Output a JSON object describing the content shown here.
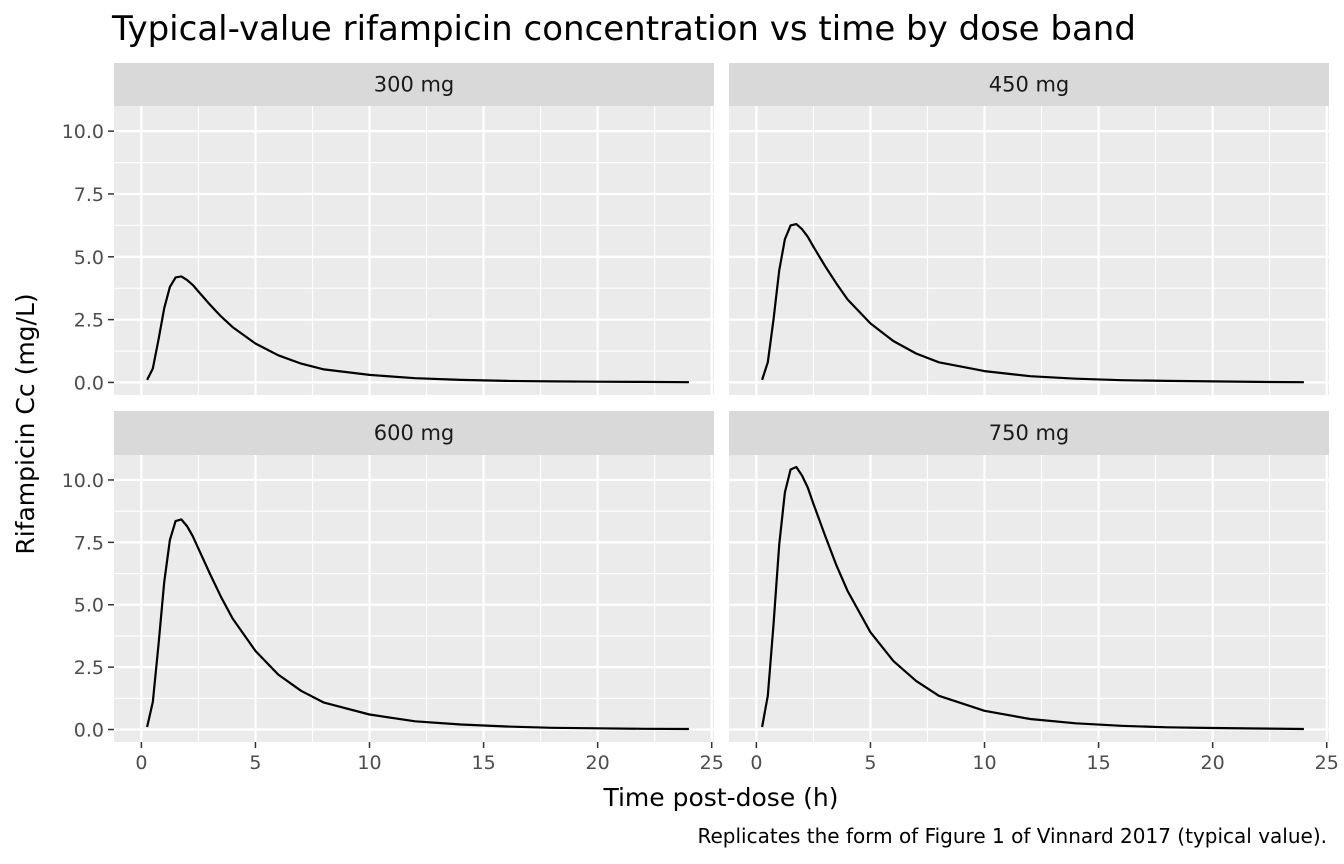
{
  "chart_data": {
    "type": "line",
    "title": "Typical-value rifampicin concentration vs time by dose band",
    "xlabel": "Time post-dose (h)",
    "ylabel": "Rifampicin Cc (mg/L)",
    "caption": "Replicates the form of Figure 1 of Vinnard 2017 (typical value).",
    "xlim": [
      -1.2,
      25.1
    ],
    "ylim": [
      -0.5,
      11.0
    ],
    "x_ticks": [
      0,
      5,
      10,
      15,
      20,
      25
    ],
    "x_tick_labels": [
      "0",
      "5",
      "10",
      "15",
      "20",
      "25"
    ],
    "y_ticks": [
      0,
      2.5,
      5,
      7.5,
      10
    ],
    "y_tick_labels": [
      "0.0",
      "2.5",
      "5.0",
      "7.5",
      "10.0"
    ],
    "grid": true,
    "facet_layout": [
      2,
      2
    ],
    "line_color": "#000000",
    "panel_background": "#ebebeb",
    "strip_background": "#d9d9d9",
    "panels": [
      {
        "strip": "300 mg",
        "x": [
          0.25,
          0.5,
          0.75,
          1,
          1.25,
          1.5,
          1.75,
          2,
          2.25,
          2.5,
          3,
          3.5,
          4,
          5,
          6,
          7,
          8,
          10,
          12,
          14,
          16,
          18,
          20,
          22,
          24
        ],
        "y": [
          0.1,
          0.55,
          1.7,
          2.95,
          3.8,
          4.18,
          4.22,
          4.08,
          3.88,
          3.62,
          3.1,
          2.62,
          2.2,
          1.55,
          1.08,
          0.75,
          0.52,
          0.3,
          0.17,
          0.1,
          0.06,
          0.04,
          0.03,
          0.02,
          0.01
        ]
      },
      {
        "strip": "450 mg",
        "x": [
          0.25,
          0.5,
          0.75,
          1,
          1.25,
          1.5,
          1.75,
          2,
          2.25,
          2.5,
          3,
          3.5,
          4,
          5,
          6,
          7,
          8,
          10,
          12,
          14,
          16,
          18,
          20,
          22,
          24
        ],
        "y": [
          0.1,
          0.8,
          2.5,
          4.45,
          5.7,
          6.25,
          6.3,
          6.1,
          5.8,
          5.4,
          4.65,
          3.95,
          3.3,
          2.35,
          1.65,
          1.15,
          0.8,
          0.45,
          0.25,
          0.15,
          0.09,
          0.06,
          0.04,
          0.02,
          0.01
        ]
      },
      {
        "strip": "600 mg",
        "x": [
          0.25,
          0.5,
          0.75,
          1,
          1.25,
          1.5,
          1.75,
          2,
          2.25,
          2.5,
          3,
          3.5,
          4,
          5,
          6,
          7,
          8,
          10,
          12,
          14,
          16,
          18,
          20,
          22,
          24
        ],
        "y": [
          0.1,
          1.1,
          3.4,
          5.9,
          7.6,
          8.35,
          8.42,
          8.15,
          7.75,
          7.25,
          6.25,
          5.3,
          4.45,
          3.15,
          2.2,
          1.55,
          1.08,
          0.6,
          0.33,
          0.2,
          0.12,
          0.07,
          0.05,
          0.03,
          0.02
        ]
      },
      {
        "strip": "750 mg",
        "x": [
          0.25,
          0.5,
          0.75,
          1,
          1.25,
          1.5,
          1.75,
          2,
          2.25,
          2.5,
          3,
          3.5,
          4,
          5,
          6,
          7,
          8,
          10,
          12,
          14,
          16,
          18,
          20,
          22,
          24
        ],
        "y": [
          0.1,
          1.35,
          4.2,
          7.4,
          9.5,
          10.42,
          10.52,
          10.18,
          9.7,
          9.05,
          7.8,
          6.6,
          5.55,
          3.9,
          2.75,
          1.95,
          1.35,
          0.75,
          0.42,
          0.25,
          0.15,
          0.09,
          0.06,
          0.04,
          0.02
        ]
      }
    ]
  }
}
